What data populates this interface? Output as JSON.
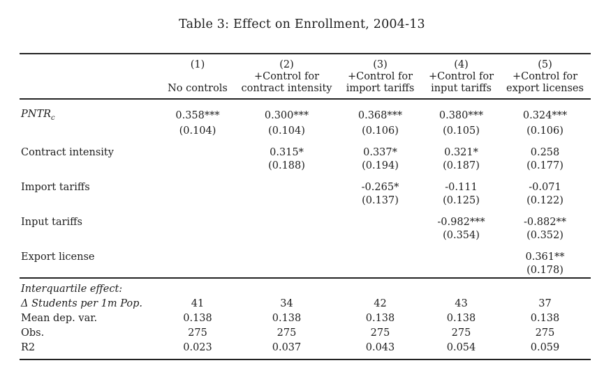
{
  "page": {
    "title": "Table 3: Effect on Enrollment, 2004-13"
  },
  "table": {
    "columns": [
      {
        "number": "(1)",
        "control": "",
        "name": "No controls"
      },
      {
        "number": "(2)",
        "control": "+Control for",
        "name": "contract intensity"
      },
      {
        "number": "(3)",
        "control": "+Control for",
        "name": "import tariffs"
      },
      {
        "number": "(4)",
        "control": "+Control for",
        "name": "input tariffs"
      },
      {
        "number": "(5)",
        "control": "+Control for",
        "name": "export licenses"
      }
    ],
    "coef_rows": [
      {
        "label_main": "PNTR",
        "label_sub": "c",
        "estimates": [
          "0.358***",
          "0.300***",
          "0.368***",
          "0.380***",
          "0.324***"
        ],
        "ses": [
          "(0.104)",
          "(0.104)",
          "(0.106)",
          "(0.105)",
          "(0.106)"
        ]
      },
      {
        "label": "Contract intensity",
        "estimates": [
          "",
          "0.315*",
          "0.337*",
          "0.321*",
          "0.258"
        ],
        "ses": [
          "",
          "(0.188)",
          "(0.194)",
          "(0.187)",
          "(0.177)"
        ]
      },
      {
        "label": "Import tariffs",
        "estimates": [
          "",
          "",
          "-0.265*",
          "-0.111",
          "-0.071"
        ],
        "ses": [
          "",
          "",
          "(0.137)",
          "(0.125)",
          "(0.122)"
        ]
      },
      {
        "label": "Input tariffs",
        "estimates": [
          "",
          "",
          "",
          "-0.982***",
          "-0.882**"
        ],
        "ses": [
          "",
          "",
          "",
          "(0.354)",
          "(0.352)"
        ]
      },
      {
        "label": "Export license",
        "estimates": [
          "",
          "",
          "",
          "",
          "0.361**"
        ],
        "ses": [
          "",
          "",
          "",
          "",
          "(0.178)"
        ]
      }
    ],
    "stats_header": "Interquartile effect:",
    "stat_rows": [
      {
        "label": "Δ Students per 1m Pop.",
        "values": [
          "41",
          "34",
          "42",
          "43",
          "37"
        ]
      },
      {
        "label": "Mean dep. var.",
        "values": [
          "0.138",
          "0.138",
          "0.138",
          "0.138",
          "0.138"
        ]
      },
      {
        "label": "Obs.",
        "values": [
          "275",
          "275",
          "275",
          "275",
          "275"
        ]
      },
      {
        "label": "R2",
        "values": [
          "0.023",
          "0.037",
          "0.043",
          "0.054",
          "0.059"
        ]
      }
    ]
  }
}
